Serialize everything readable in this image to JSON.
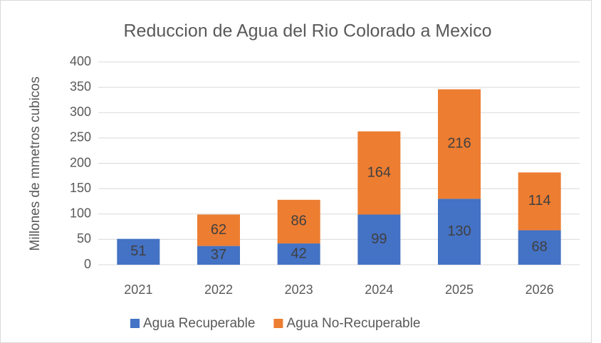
{
  "chart_data": {
    "type": "stacked_bar",
    "title": "Reduccion de Agua del Rio Colorado a Mexico",
    "y_label": "Millones de mmetros cubicos",
    "categories": [
      "2021",
      "2022",
      "2023",
      "2024",
      "2025",
      "2026"
    ],
    "series": [
      {
        "name": "Agua Recuperable",
        "color": "#4472c4",
        "values": [
          51,
          37,
          42,
          99,
          130,
          68
        ]
      },
      {
        "name": "Agua No-Recuperable",
        "color": "#ed7d31",
        "values": [
          null,
          62,
          86,
          164,
          216,
          114
        ]
      }
    ],
    "ylim": [
      0,
      400
    ],
    "yticks": [
      0,
      50,
      100,
      150,
      200,
      250,
      300,
      350,
      400
    ],
    "grid": true,
    "legend": "bottom"
  }
}
